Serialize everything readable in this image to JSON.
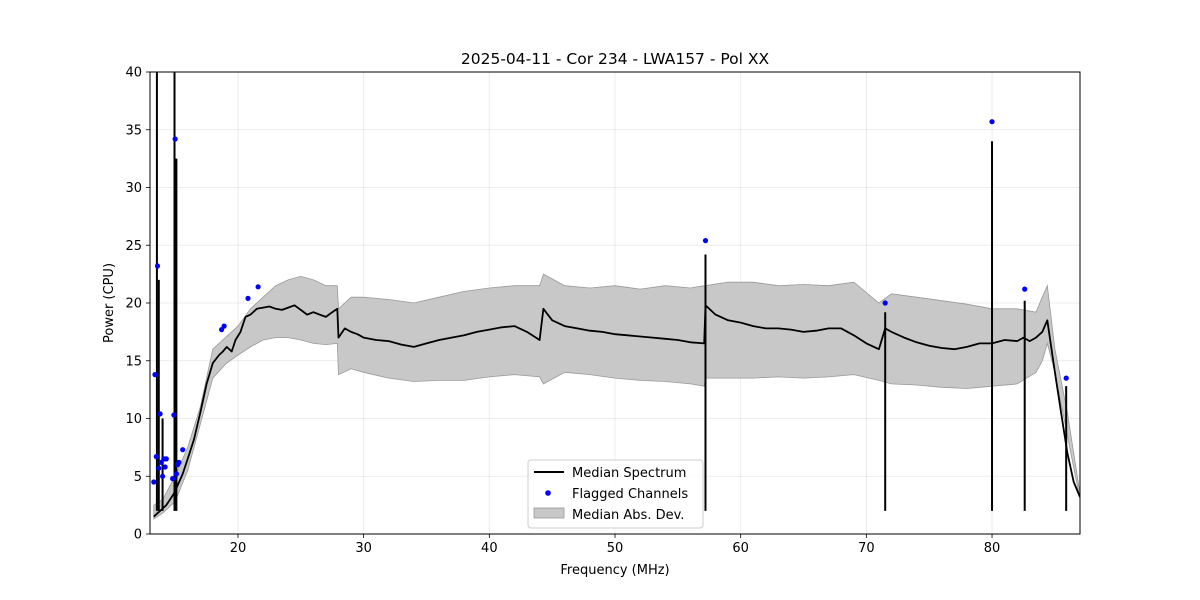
{
  "chart_data": {
    "type": "line",
    "title": "2025-04-11 - Cor 234 - LWA157 - Pol XX",
    "xlabel": "Frequency (MHz)",
    "ylabel": "Power (CPU)",
    "xlim": [
      13,
      87
    ],
    "ylim": [
      0,
      40
    ],
    "xticks": [
      20,
      30,
      40,
      50,
      60,
      70,
      80
    ],
    "yticks": [
      0,
      5,
      10,
      15,
      20,
      25,
      30,
      35,
      40
    ],
    "grid": true,
    "legend_position": "bottom-center",
    "colors": {
      "median": "#000000",
      "flagged": "#0000ff",
      "mad_fill": "#c8c8c8",
      "mad_edge": "#999999"
    },
    "series": [
      {
        "name": "Median Spectrum",
        "kind": "line",
        "x": [
          13.3,
          13.6,
          13.8,
          14.0,
          14.3,
          14.6,
          14.9,
          15.2,
          15.6,
          16.0,
          16.5,
          17.0,
          17.5,
          18.0,
          18.5,
          18.8,
          19.1,
          19.5,
          19.8,
          20.2,
          20.6,
          21.0,
          21.5,
          22.0,
          22.5,
          23.0,
          23.5,
          24.0,
          24.5,
          25.0,
          25.5,
          26.0,
          26.5,
          27.0,
          27.5,
          27.9,
          28.0,
          28.5,
          29.0,
          29.5,
          30.0,
          31.0,
          32.0,
          33.0,
          34.0,
          35.0,
          36.0,
          37.0,
          38.0,
          39.0,
          40.0,
          41.0,
          42.0,
          43.0,
          44.0,
          44.3,
          45.0,
          46.0,
          47.0,
          48.0,
          49.0,
          50.0,
          51.0,
          52.0,
          53.0,
          54.0,
          55.0,
          56.0,
          57.1,
          57.2,
          58.0,
          59.0,
          60.0,
          61.0,
          62.0,
          63.0,
          64.0,
          65.0,
          66.0,
          67.0,
          68.0,
          69.0,
          70.0,
          71.0,
          71.5,
          72.0,
          73.0,
          74.0,
          75.0,
          76.0,
          77.0,
          78.0,
          79.0,
          80.0,
          81.0,
          82.0,
          82.5,
          83.0,
          83.5,
          84.0,
          84.4,
          85.0,
          85.5,
          86.0,
          86.5,
          87.0
        ],
        "y": [
          1.5,
          1.8,
          2.0,
          2.2,
          2.5,
          3.0,
          3.5,
          4.2,
          5.2,
          6.5,
          8.2,
          10.5,
          13.0,
          14.8,
          15.5,
          15.8,
          16.2,
          15.8,
          16.8,
          17.5,
          18.8,
          19.0,
          19.5,
          19.6,
          19.7,
          19.5,
          19.4,
          19.6,
          19.8,
          19.4,
          19.0,
          19.2,
          19.0,
          18.8,
          19.2,
          19.5,
          17.0,
          17.8,
          17.5,
          17.3,
          17.0,
          16.8,
          16.7,
          16.4,
          16.2,
          16.5,
          16.8,
          17.0,
          17.2,
          17.5,
          17.7,
          17.9,
          18.0,
          17.5,
          16.8,
          19.5,
          18.5,
          18.0,
          17.8,
          17.6,
          17.5,
          17.3,
          17.2,
          17.1,
          17.0,
          16.9,
          16.8,
          16.6,
          16.5,
          19.8,
          19.0,
          18.5,
          18.3,
          18.0,
          17.8,
          17.8,
          17.7,
          17.5,
          17.6,
          17.8,
          17.8,
          17.2,
          16.5,
          16.0,
          17.8,
          17.5,
          17.0,
          16.6,
          16.3,
          16.1,
          16.0,
          16.2,
          16.5,
          16.5,
          16.8,
          16.7,
          17.0,
          16.7,
          17.0,
          17.5,
          18.5,
          14.0,
          10.5,
          7.0,
          4.5,
          3.2
        ]
      },
      {
        "name": "Median Abs. Dev.",
        "kind": "band",
        "x": [
          13.3,
          14.0,
          15.0,
          16.0,
          17.0,
          18.0,
          19.0,
          20.0,
          21.0,
          22.0,
          23.0,
          24.0,
          25.0,
          26.0,
          27.0,
          27.9,
          28.0,
          29.0,
          30.0,
          32.0,
          34.0,
          36.0,
          38.0,
          40.0,
          42.0,
          44.0,
          44.3,
          46.0,
          48.0,
          50.0,
          52.0,
          54.0,
          56.0,
          57.1,
          57.2,
          59.0,
          61.0,
          63.0,
          65.0,
          67.0,
          69.0,
          71.0,
          72.0,
          74.0,
          76.0,
          78.0,
          80.0,
          82.0,
          83.5,
          84.0,
          84.4,
          85.0,
          86.0,
          87.0
        ],
        "lower": [
          1.3,
          1.8,
          2.8,
          5.5,
          9.5,
          13.5,
          14.7,
          15.5,
          16.2,
          16.8,
          17.0,
          17.0,
          16.8,
          16.5,
          16.4,
          16.5,
          13.8,
          14.3,
          14.0,
          13.5,
          13.2,
          13.3,
          13.3,
          13.6,
          13.8,
          13.6,
          13.0,
          14.0,
          13.8,
          13.5,
          13.3,
          13.2,
          13.0,
          12.8,
          13.5,
          13.5,
          13.5,
          13.6,
          13.5,
          13.6,
          13.8,
          13.3,
          13.0,
          12.9,
          12.7,
          12.6,
          12.8,
          13.0,
          14.0,
          15.0,
          16.5,
          14.0,
          8.5,
          3.0
        ],
        "upper": [
          2.5,
          3.0,
          5.0,
          7.5,
          11.0,
          16.0,
          17.0,
          18.0,
          19.5,
          20.5,
          21.5,
          22.0,
          22.3,
          22.0,
          21.5,
          21.5,
          19.5,
          20.5,
          20.5,
          20.3,
          20.0,
          20.5,
          21.0,
          21.3,
          21.5,
          21.5,
          22.5,
          21.5,
          21.3,
          21.5,
          21.2,
          21.5,
          21.3,
          21.5,
          21.5,
          21.8,
          21.8,
          21.5,
          21.6,
          21.5,
          21.8,
          20.0,
          20.8,
          20.5,
          20.2,
          19.9,
          19.5,
          19.5,
          19.2,
          20.5,
          21.5,
          16.0,
          10.5,
          3.5
        ]
      },
      {
        "name": "Flagged Channels",
        "kind": "scatter",
        "x": [
          13.3,
          13.4,
          13.5,
          13.6,
          13.7,
          13.8,
          13.9,
          14.0,
          14.1,
          14.2,
          14.3,
          14.8,
          14.9,
          15.0,
          15.1,
          15.2,
          15.3,
          15.6,
          18.7,
          18.9,
          20.8,
          21.6,
          57.2,
          71.5,
          80.0,
          82.6,
          85.9
        ],
        "y": [
          4.5,
          13.8,
          6.7,
          23.2,
          5.7,
          10.4,
          6.2,
          5.0,
          6.5,
          5.8,
          6.5,
          4.8,
          10.3,
          34.2,
          5.2,
          6.0,
          6.2,
          7.3,
          17.7,
          18.0,
          20.4,
          21.4,
          25.4,
          20.0,
          35.7,
          21.2,
          13.5
        ]
      }
    ],
    "spikes": [
      {
        "x": 13.55,
        "top": 40
      },
      {
        "x": 13.7,
        "top": 22
      },
      {
        "x": 14.0,
        "top": 10
      },
      {
        "x": 14.95,
        "top": 40
      },
      {
        "x": 15.1,
        "top": 32.5
      },
      {
        "x": 57.2,
        "top": 24.2
      },
      {
        "x": 71.5,
        "top": 19.2
      },
      {
        "x": 80.0,
        "top": 34.0
      },
      {
        "x": 82.6,
        "top": 20.2
      },
      {
        "x": 85.9,
        "top": 12.8
      }
    ],
    "legend": [
      {
        "label": "Median Spectrum",
        "style": "line"
      },
      {
        "label": "Flagged Channels",
        "style": "dot"
      },
      {
        "label": "Median Abs. Dev.",
        "style": "patch"
      }
    ]
  }
}
